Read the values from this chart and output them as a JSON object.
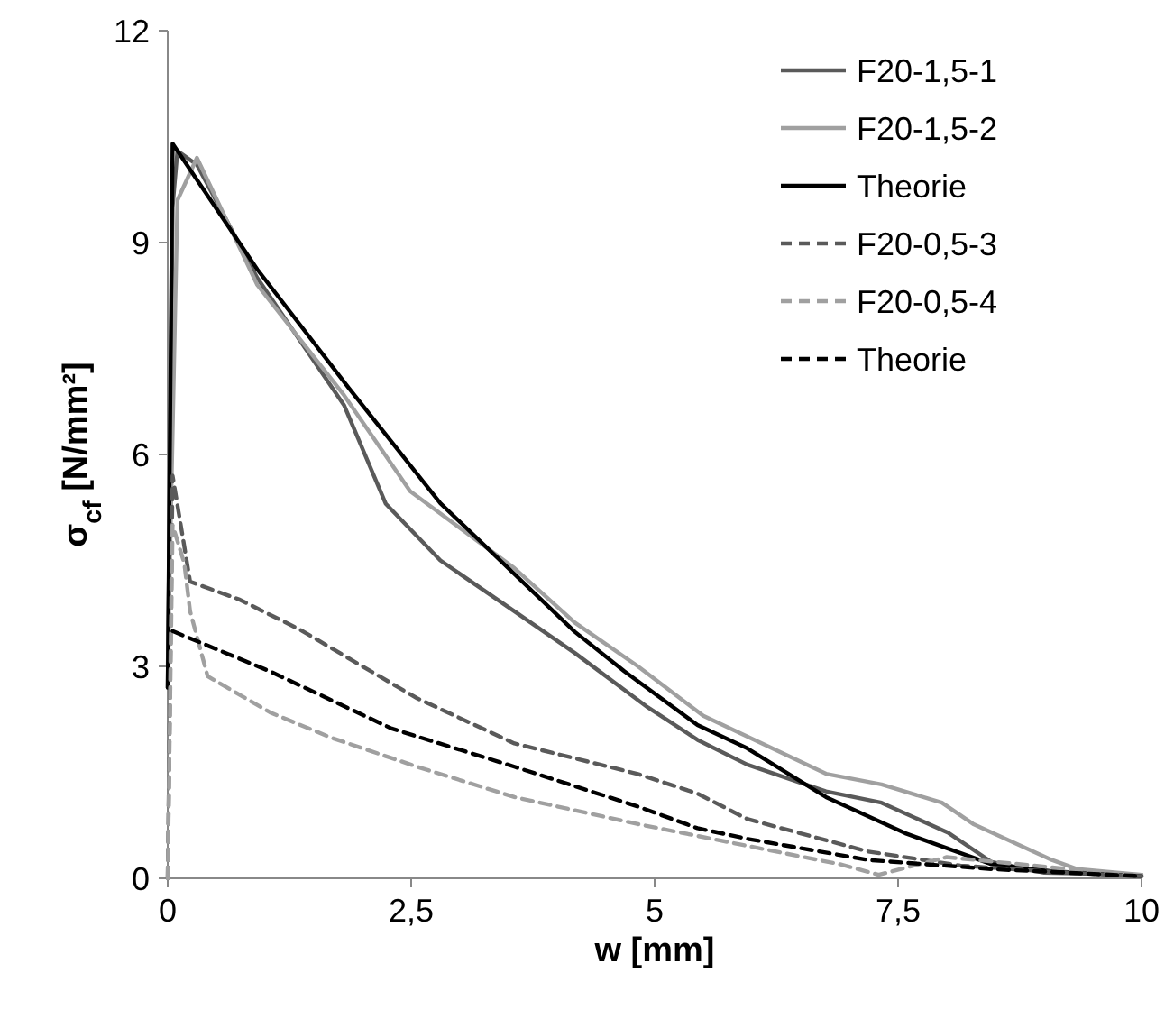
{
  "chart_data": {
    "type": "line",
    "xlabel": "w [mm]",
    "ylabel": "σ$_{cf}$ [N/mm²]",
    "xlim": [
      0,
      10
    ],
    "ylim": [
      0,
      12
    ],
    "xticks": [
      0,
      {
        "value": 2.5,
        "label": "2,5"
      },
      5,
      {
        "value": 7.5,
        "label": "7,5"
      },
      10
    ],
    "yticks": [
      0,
      3,
      6,
      9,
      12
    ],
    "grid": false,
    "legend": "top right",
    "marker": "none",
    "series": [
      {
        "name": "F20-1,5-1",
        "color": "#5a5a5a",
        "line_style": "solid",
        "x": [
          0,
          0.05,
          0.1,
          0.3,
          0.92,
          1.81,
          2.24,
          2.8,
          3.56,
          4.18,
          4.93,
          5.44,
          5.95,
          6.76,
          7.33,
          8.02,
          8.46,
          9,
          10
        ],
        "values": [
          2.7,
          9.5,
          10.3,
          10.1,
          8.5,
          6.7,
          5.3,
          4.5,
          3.78,
          3.19,
          2.42,
          1.96,
          1.61,
          1.23,
          1.07,
          0.64,
          0.23,
          0.08,
          0.05
        ]
      },
      {
        "name": "F20-1,5-2",
        "color": "#a0a0a0",
        "line_style": "solid",
        "x": [
          0,
          0.1,
          0.3,
          0.92,
          1.81,
          2.49,
          3.56,
          4.18,
          4.82,
          5.5,
          6.76,
          7.33,
          7.95,
          8.27,
          9.08,
          9.34,
          10
        ],
        "values": [
          3,
          9.6,
          10.2,
          8.4,
          6.84,
          5.48,
          4.39,
          3.62,
          3.01,
          2.3,
          1.48,
          1.33,
          1.07,
          0.77,
          0.26,
          0.13,
          0.05
        ]
      },
      {
        "name": "Theorie",
        "color": "#000000",
        "line_style": "solid",
        "x": [
          0,
          0.05,
          0.92,
          1.86,
          2.8,
          4.18,
          4.69,
          5.44,
          5.95,
          6.76,
          7.57,
          8.46,
          9.08,
          10
        ],
        "values": [
          2.7,
          10.4,
          8.62,
          6.94,
          5.31,
          3.49,
          2.93,
          2.17,
          1.84,
          1.15,
          0.64,
          0.2,
          0.1,
          0.03
        ]
      },
      {
        "name": "F20-0,5-3",
        "color": "#5a5a5a",
        "line_style": "dashed",
        "x": [
          0,
          0.05,
          0.23,
          0.73,
          1.36,
          2,
          2.56,
          3.56,
          4.82,
          5.44,
          5.95,
          7.19,
          8.14,
          9,
          10
        ],
        "values": [
          0,
          5.7,
          4.2,
          3.95,
          3.52,
          3,
          2.55,
          1.91,
          1.48,
          1.2,
          0.84,
          0.38,
          0.18,
          0.1,
          0.03
        ]
      },
      {
        "name": "F20-0,5-4",
        "color": "#a0a0a0",
        "line_style": "dashed",
        "x": [
          0,
          0.05,
          0.17,
          0.23,
          0.41,
          1.05,
          1.68,
          2.56,
          3.56,
          4.82,
          5.95,
          6.9,
          7.3,
          8,
          10
        ],
        "values": [
          0,
          5,
          4.46,
          3.78,
          2.86,
          2.35,
          1.99,
          1.58,
          1.15,
          0.77,
          0.46,
          0.2,
          0.05,
          0.3,
          0.03
        ]
      },
      {
        "name": "Theorie",
        "color": "#000000",
        "line_style": "dashed",
        "x": [
          0.05,
          1.05,
          2.3,
          3.56,
          4.82,
          5.44,
          5.95,
          7.19,
          8.46,
          10
        ],
        "values": [
          3.5,
          2.93,
          2.12,
          1.58,
          1.02,
          0.71,
          0.56,
          0.26,
          0.13,
          0.03
        ]
      }
    ]
  }
}
